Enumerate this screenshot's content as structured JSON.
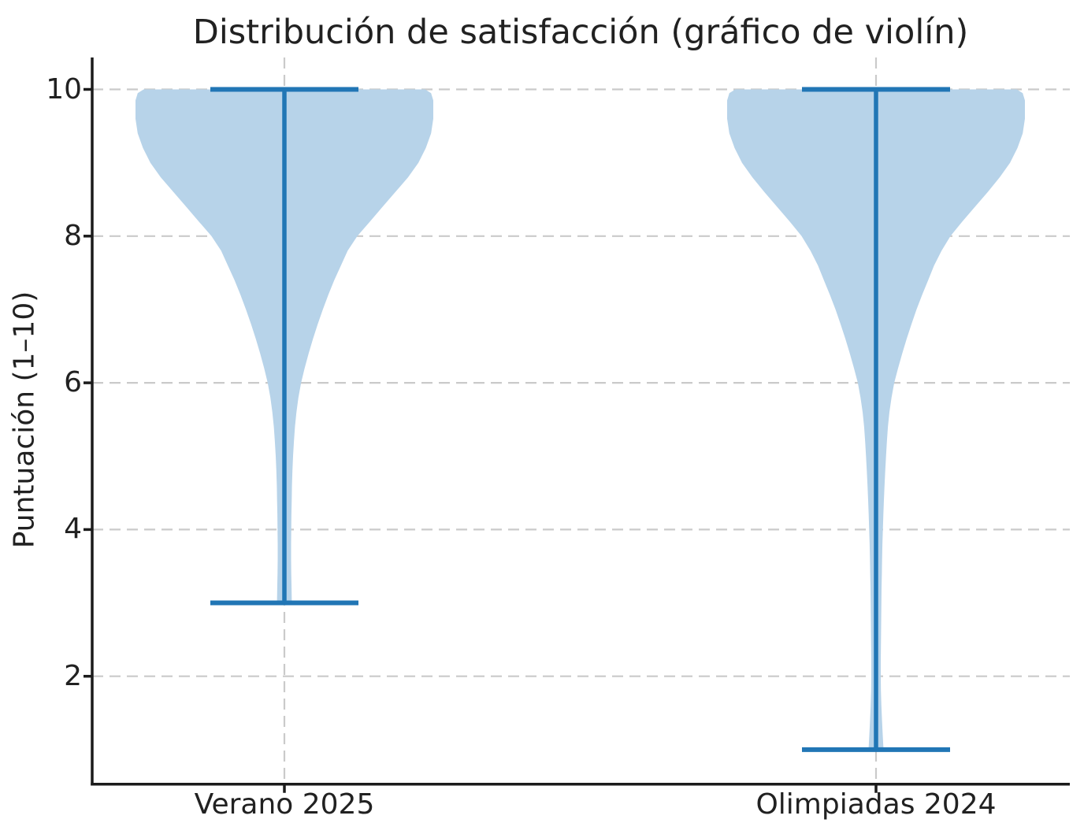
{
  "title": "Distribución de satisfacción (gráfico de violín)",
  "chart_data": {
    "type": "violin",
    "title": "Distribución de satisfacción (gráfico de violín)",
    "xlabel": "",
    "ylabel": "Puntuación (1–10)",
    "categories": [
      "Verano 2025",
      "Olimpiadas 2024"
    ],
    "yticks": [
      2,
      4,
      6,
      8,
      10
    ],
    "ylim": [
      0.55,
      10.45
    ],
    "grid": {
      "style": "dashed",
      "horizontal_at_yticks": true,
      "vertical_at_categories": true
    },
    "legend": "none",
    "violins": [
      {
        "label": "Verano 2025",
        "min": 3,
        "max": 10,
        "peak_density_at": 10,
        "whisker": {
          "lo": 3,
          "hi": 10
        },
        "profile": [
          [
            10.0,
            0.945
          ],
          [
            9.95,
            0.985
          ],
          [
            9.85,
            1.0
          ],
          [
            9.6,
            1.0
          ],
          [
            9.4,
            0.985
          ],
          [
            9.2,
            0.95
          ],
          [
            9.0,
            0.9
          ],
          [
            8.8,
            0.83
          ],
          [
            8.6,
            0.745
          ],
          [
            8.4,
            0.66
          ],
          [
            8.2,
            0.575
          ],
          [
            8.0,
            0.49
          ],
          [
            7.8,
            0.425
          ],
          [
            7.6,
            0.38
          ],
          [
            7.4,
            0.335
          ],
          [
            7.2,
            0.295
          ],
          [
            7.0,
            0.258
          ],
          [
            6.8,
            0.224
          ],
          [
            6.6,
            0.192
          ],
          [
            6.4,
            0.163
          ],
          [
            6.2,
            0.136
          ],
          [
            6.0,
            0.112
          ],
          [
            5.8,
            0.094
          ],
          [
            5.6,
            0.081
          ],
          [
            5.4,
            0.071
          ],
          [
            5.2,
            0.064
          ],
          [
            5.0,
            0.058
          ],
          [
            4.8,
            0.054
          ],
          [
            4.6,
            0.051
          ],
          [
            4.4,
            0.049
          ],
          [
            4.2,
            0.047
          ],
          [
            4.0,
            0.046
          ],
          [
            3.8,
            0.045
          ],
          [
            3.6,
            0.045
          ],
          [
            3.4,
            0.046
          ],
          [
            3.2,
            0.048
          ],
          [
            3.0,
            0.05
          ]
        ]
      },
      {
        "label": "Olimpiadas 2024",
        "min": 1,
        "max": 10,
        "peak_density_at": 10,
        "whisker": {
          "lo": 1,
          "hi": 10
        },
        "profile": [
          [
            10.0,
            0.945
          ],
          [
            9.95,
            0.985
          ],
          [
            9.85,
            1.0
          ],
          [
            9.6,
            1.0
          ],
          [
            9.4,
            0.985
          ],
          [
            9.2,
            0.95
          ],
          [
            9.0,
            0.9
          ],
          [
            8.8,
            0.83
          ],
          [
            8.6,
            0.75
          ],
          [
            8.4,
            0.665
          ],
          [
            8.2,
            0.58
          ],
          [
            8.0,
            0.5
          ],
          [
            7.8,
            0.44
          ],
          [
            7.6,
            0.39
          ],
          [
            7.4,
            0.35
          ],
          [
            7.2,
            0.31
          ],
          [
            7.0,
            0.272
          ],
          [
            6.8,
            0.238
          ],
          [
            6.6,
            0.206
          ],
          [
            6.4,
            0.176
          ],
          [
            6.2,
            0.148
          ],
          [
            6.0,
            0.122
          ],
          [
            5.8,
            0.104
          ],
          [
            5.6,
            0.09
          ],
          [
            5.4,
            0.08
          ],
          [
            5.2,
            0.073
          ],
          [
            5.0,
            0.067
          ],
          [
            4.8,
            0.062
          ],
          [
            4.6,
            0.057
          ],
          [
            4.4,
            0.053
          ],
          [
            4.2,
            0.049
          ],
          [
            4.0,
            0.046
          ],
          [
            3.8,
            0.043
          ],
          [
            3.6,
            0.041
          ],
          [
            3.4,
            0.039
          ],
          [
            3.2,
            0.037
          ],
          [
            3.0,
            0.036
          ],
          [
            2.8,
            0.035
          ],
          [
            2.6,
            0.034
          ],
          [
            2.4,
            0.033
          ],
          [
            2.2,
            0.032
          ],
          [
            2.0,
            0.032
          ],
          [
            1.8,
            0.033
          ],
          [
            1.6,
            0.036
          ],
          [
            1.4,
            0.04
          ],
          [
            1.2,
            0.045
          ],
          [
            1.0,
            0.05
          ]
        ]
      }
    ],
    "colors": {
      "violin_fill": "#b7d3e9",
      "whisker_line": "#2176b5",
      "grid": "#cacaca",
      "spine": "#1b1b1b",
      "text": "#212121"
    }
  }
}
